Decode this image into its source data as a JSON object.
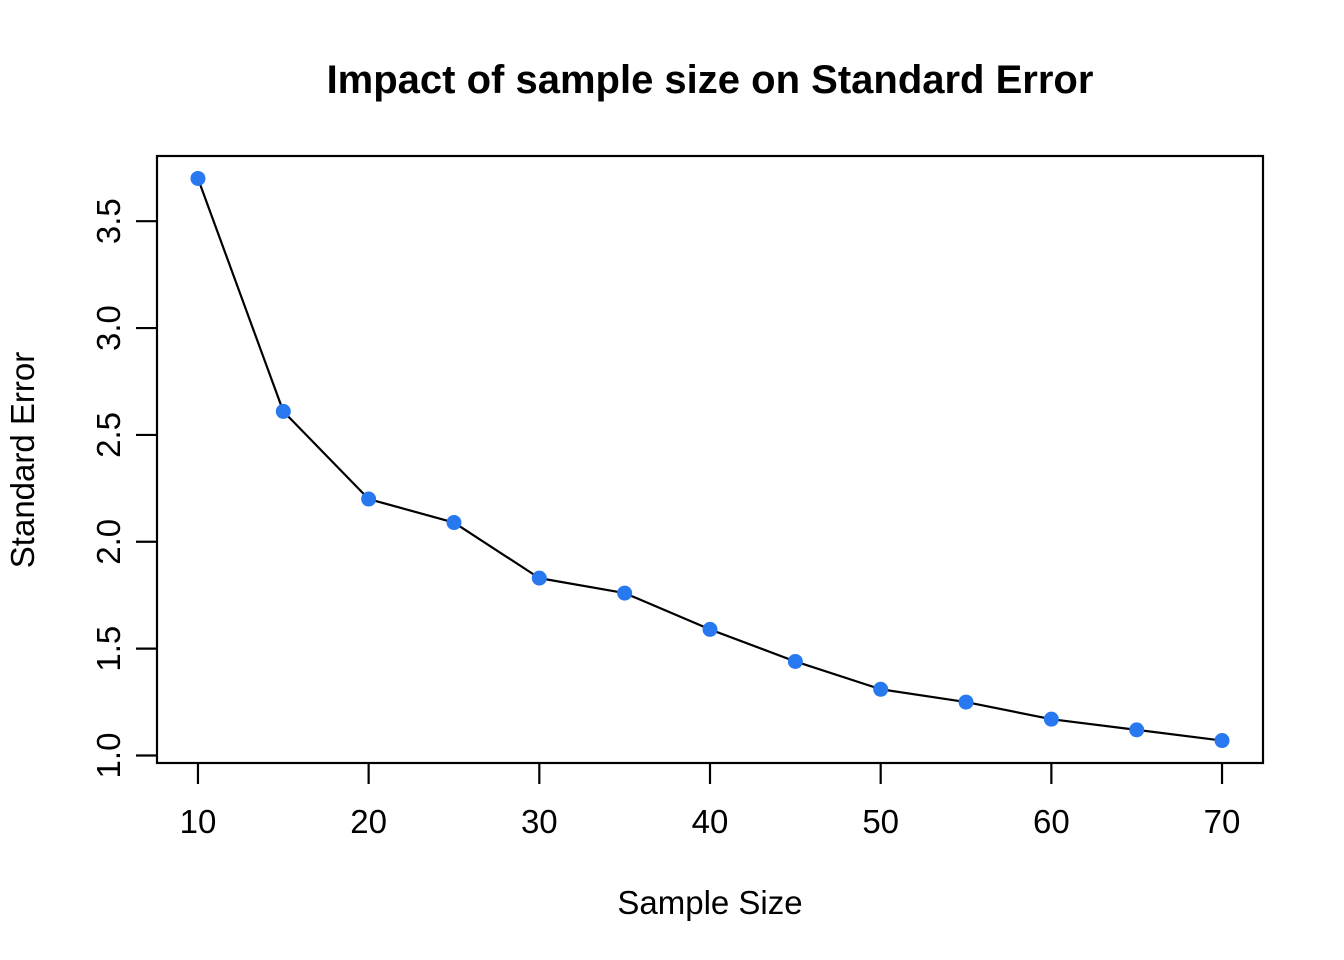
{
  "chart_data": {
    "type": "line",
    "title": "Impact of sample size on Standard Error",
    "xlabel": "Sample Size",
    "ylabel": "Standard Error",
    "x": [
      10,
      15,
      20,
      25,
      30,
      35,
      40,
      45,
      50,
      55,
      60,
      65,
      70
    ],
    "y": [
      3.7,
      2.61,
      2.2,
      2.09,
      1.83,
      1.76,
      1.59,
      1.44,
      1.31,
      1.25,
      1.17,
      1.12,
      1.07
    ],
    "x_ticks": [
      10,
      20,
      30,
      40,
      50,
      60,
      70
    ],
    "x_tick_labels": [
      "10",
      "20",
      "30",
      "40",
      "50",
      "60",
      "70"
    ],
    "y_ticks": [
      1.0,
      1.5,
      2.0,
      2.5,
      3.0,
      3.5
    ],
    "y_tick_labels": [
      "1.0",
      "1.5",
      "2.0",
      "2.5",
      "3.0",
      "3.5"
    ],
    "xlim": [
      7.6,
      72.4
    ],
    "ylim": [
      0.965,
      3.805
    ],
    "grid": false,
    "legend": null,
    "marker": "filled-circle",
    "point_color": "#2878F0",
    "line_color": "#000000",
    "axis_color": "#000000",
    "background_color": "#ffffff"
  }
}
